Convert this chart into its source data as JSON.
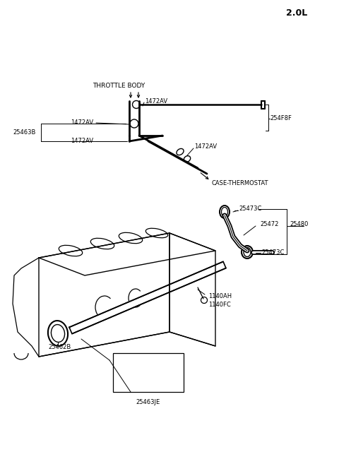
{
  "bg_color": "#ffffff",
  "line_color": "#000000",
  "title_text": "2.0L",
  "top": {
    "throttle_body_label": "THROTTLE BODY",
    "case_thermostat_label": "CASE-THERMOSTAT",
    "label_25463B": "25463B",
    "label_1472AV_top": "1472AV",
    "label_1472AV_mid": "1472AV",
    "label_1472AV_bot": "1472AV",
    "label_1472AV_right": "1472AV",
    "label_254F8F": "254F8F"
  },
  "bottom": {
    "label_25473C_top": "25473C",
    "label_25472": "25472",
    "label_25480": "25480",
    "label_25473C_bot": "25473C",
    "label_1140AH": "1140AH",
    "label_1140FC": "1140FC",
    "label_25462B": "25462B",
    "label_25463JE": "25463JE"
  }
}
